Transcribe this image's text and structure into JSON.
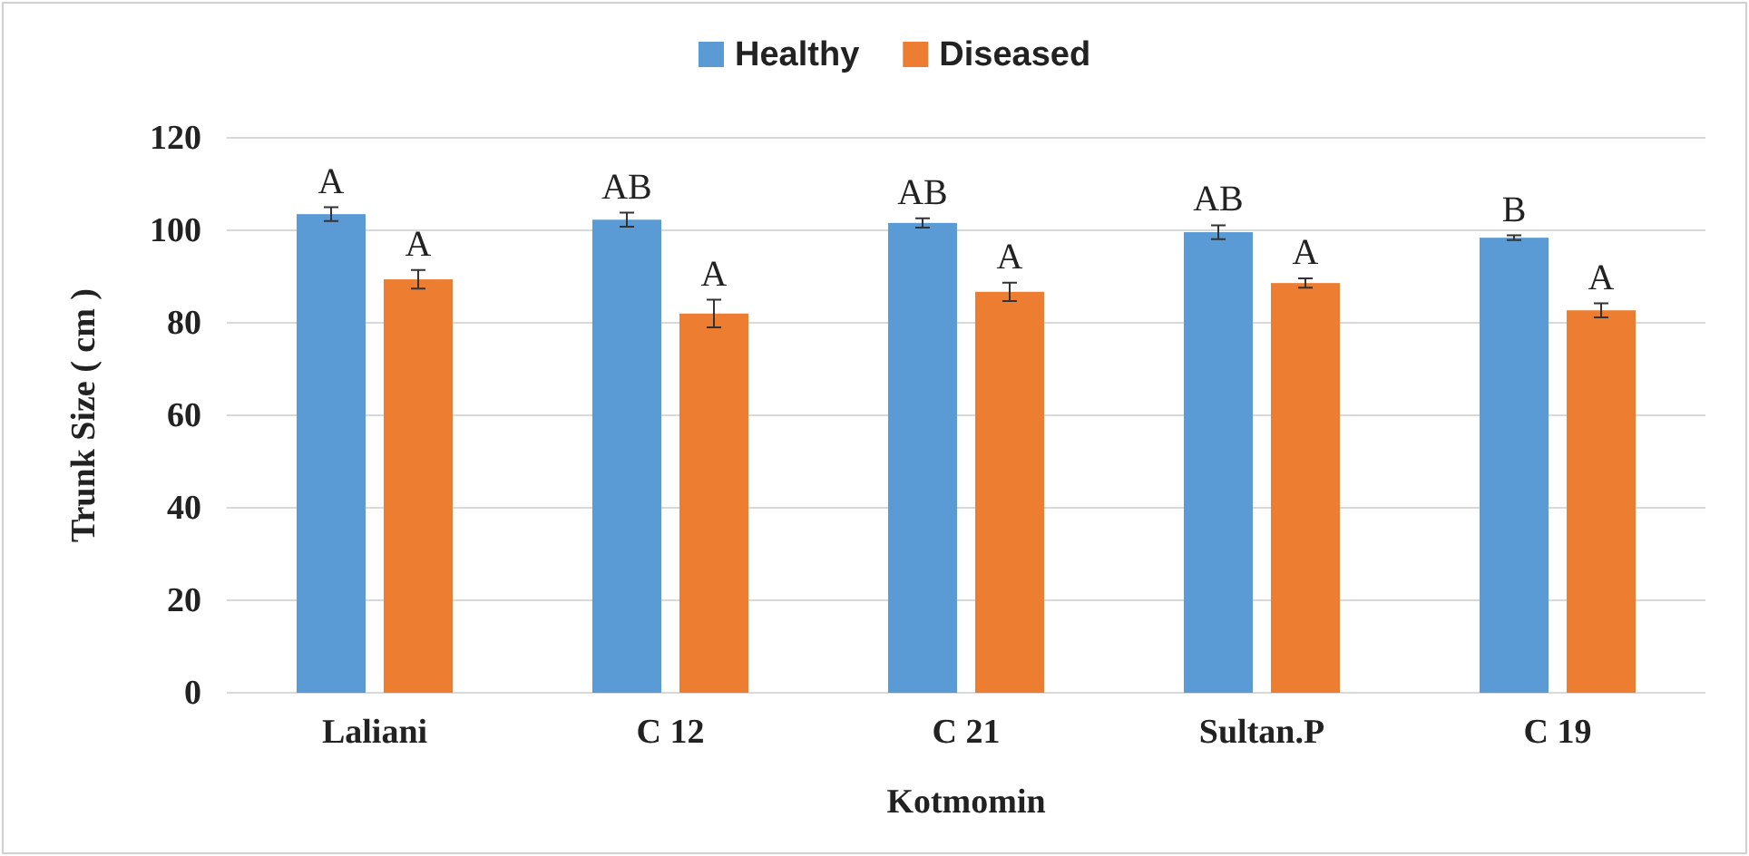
{
  "chart_data": {
    "type": "bar",
    "xlabel": "Kotmomin",
    "ylabel": "Trunk Size ( cm )",
    "categories": [
      "Laliani",
      "C 12",
      "C 21",
      "Sultan.P",
      "C 19"
    ],
    "series": [
      {
        "name": "Healthy",
        "color": "#5b9bd5",
        "values": [
          103.5,
          102.3,
          101.6,
          99.6,
          98.4
        ],
        "errors": [
          1.5,
          1.5,
          1,
          1.5,
          0.5
        ],
        "value_labels": [
          "A",
          "AB",
          "AB",
          "AB",
          "B"
        ]
      },
      {
        "name": "Diseased",
        "color": "#ed7d31",
        "values": [
          89.4,
          82,
          86.7,
          88.6,
          82.7
        ],
        "errors": [
          2,
          3,
          2,
          1,
          1.5
        ],
        "value_labels": [
          "A",
          "A",
          "A",
          "A",
          "A"
        ]
      }
    ],
    "ylim": [
      0,
      120
    ],
    "yticks": [
      0,
      20,
      40,
      60,
      80,
      100,
      120
    ],
    "grid": "y",
    "legend": "top"
  }
}
